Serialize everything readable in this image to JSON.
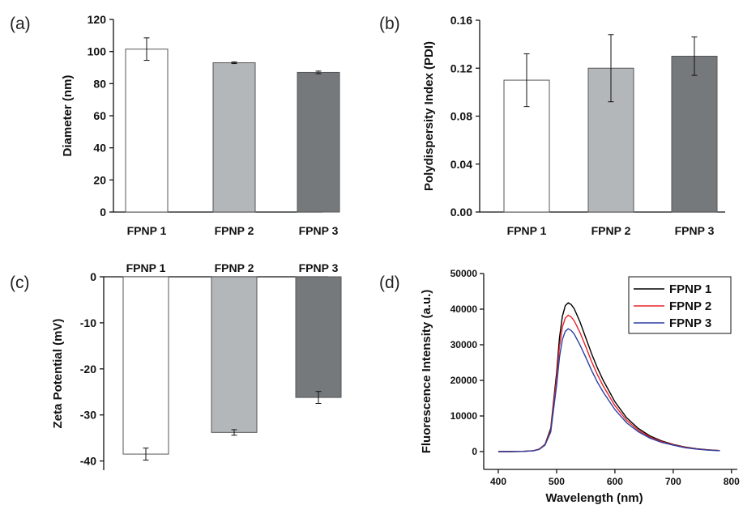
{
  "chart_data": [
    {
      "panel": "(a)",
      "type": "bar",
      "categories": [
        "FPNP 1",
        "FPNP 2",
        "FPNP 3"
      ],
      "values": [
        101.5,
        93.0,
        87.0
      ],
      "errors": [
        7.0,
        0.5,
        0.8
      ],
      "colors": [
        "#ffffff",
        "#b4b7ba",
        "#76797c"
      ],
      "ylabel": "Diameter (nm)",
      "ylim": [
        0,
        120
      ],
      "yticks": [
        0,
        20,
        40,
        60,
        80,
        100,
        120
      ],
      "ytick_labels": [
        "0",
        "20",
        "40",
        "60",
        "80",
        "100",
        "120"
      ]
    },
    {
      "panel": "(b)",
      "type": "bar",
      "categories": [
        "FPNP 1",
        "FPNP 2",
        "FPNP 3"
      ],
      "values": [
        0.11,
        0.12,
        0.13
      ],
      "errors": [
        0.022,
        0.028,
        0.016
      ],
      "colors": [
        "#ffffff",
        "#b4b7ba",
        "#76797c"
      ],
      "ylabel": "Polydispersity Index (PDI)",
      "ylim": [
        0,
        0.16
      ],
      "yticks": [
        0,
        0.04,
        0.08,
        0.12,
        0.16
      ],
      "ytick_labels": [
        "0.00",
        "0.04",
        "0.08",
        "0.12",
        "0.16"
      ]
    },
    {
      "panel": "(c)",
      "type": "bar",
      "categories": [
        "FPNP 1",
        "FPNP 2",
        "FPNP 3"
      ],
      "values": [
        -38.5,
        -33.8,
        -26.2
      ],
      "errors": [
        1.3,
        0.6,
        1.3
      ],
      "colors": [
        "#ffffff",
        "#b4b7ba",
        "#76797c"
      ],
      "ylabel": "Zeta Potential (mV)",
      "ylim": [
        -42,
        0
      ],
      "yticks": [
        0,
        -10,
        -20,
        -30,
        -40
      ],
      "ytick_labels": [
        "0",
        "-10",
        "-20",
        "-30",
        "-40"
      ],
      "category_labels_position": "top"
    },
    {
      "panel": "(d)",
      "type": "line",
      "xlabel": "Wavelength (nm)",
      "ylabel": "Fluorescence Intensity (a.u.)",
      "xlim": [
        375,
        810
      ],
      "ylim": [
        -5000,
        50000
      ],
      "xticks": [
        400,
        500,
        600,
        700,
        800
      ],
      "xtick_labels": [
        "400",
        "500",
        "600",
        "700",
        "800"
      ],
      "yticks": [
        0,
        10000,
        20000,
        30000,
        40000,
        50000
      ],
      "ytick_labels": [
        "0",
        "10000",
        "20000",
        "30000",
        "40000",
        "50000"
      ],
      "x": [
        400,
        420,
        440,
        460,
        470,
        480,
        490,
        500,
        505,
        510,
        515,
        520,
        525,
        530,
        540,
        550,
        560,
        570,
        580,
        600,
        620,
        640,
        660,
        680,
        700,
        720,
        740,
        760,
        780
      ],
      "series": [
        {
          "name": "FPNP 1",
          "color": "#000000",
          "values": [
            0,
            0,
            50,
            250,
            700,
            2000,
            6500,
            22000,
            32000,
            38000,
            41000,
            41800,
            41300,
            40200,
            36500,
            32000,
            27500,
            23500,
            20000,
            14000,
            9500,
            6500,
            4400,
            3000,
            2000,
            1300,
            800,
            500,
            300
          ]
        },
        {
          "name": "FPNP 2",
          "color": "#e8232a",
          "values": [
            0,
            0,
            50,
            250,
            650,
            1900,
            6000,
            20500,
            29500,
            35000,
            37500,
            38300,
            37800,
            36800,
            33500,
            29500,
            25300,
            21600,
            18400,
            12900,
            8800,
            6000,
            4100,
            2800,
            1900,
            1200,
            750,
            450,
            280
          ]
        },
        {
          "name": "FPNP 3",
          "color": "#2b3ea0",
          "values": [
            0,
            0,
            50,
            200,
            600,
            1800,
            5500,
            18500,
            26500,
            31500,
            33800,
            34500,
            34000,
            33100,
            30000,
            26500,
            22800,
            19500,
            16700,
            11800,
            8100,
            5600,
            3800,
            2600,
            1800,
            1100,
            700,
            420,
            260
          ]
        }
      ],
      "legend": "top-right"
    }
  ]
}
